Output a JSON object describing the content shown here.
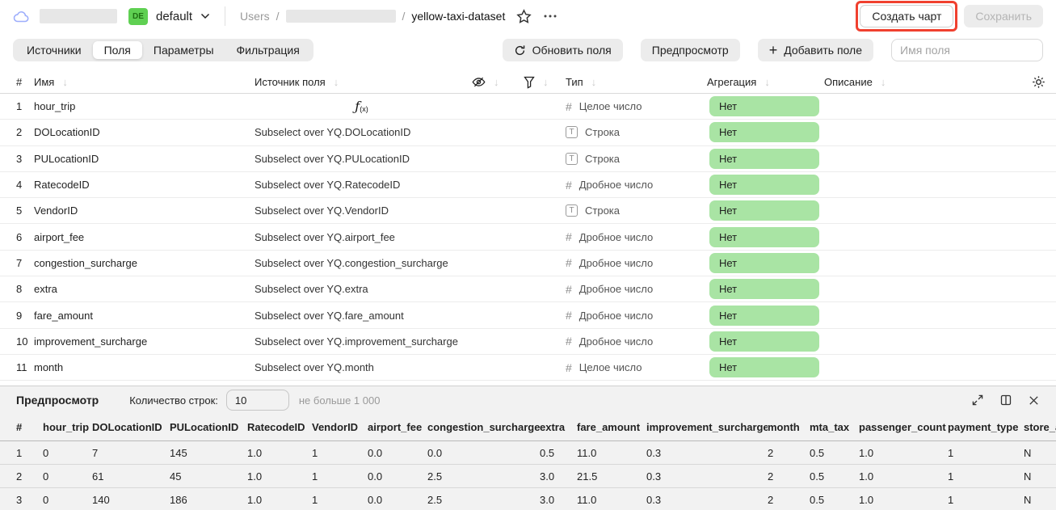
{
  "header": {
    "workspace_badge": "DE",
    "workspace_name": "default",
    "breadcrumb": {
      "section": "Users",
      "separator": "/",
      "dataset": "yellow-taxi-dataset"
    },
    "buttons": {
      "create_chart": "Создать чарт",
      "save": "Сохранить"
    }
  },
  "tabs": {
    "items": [
      {
        "label": "Источники",
        "active": false
      },
      {
        "label": "Поля",
        "active": true
      },
      {
        "label": "Параметры",
        "active": false
      },
      {
        "label": "Фильтрация",
        "active": false
      }
    ]
  },
  "toolbar": {
    "refresh_fields_label": "Обновить поля",
    "preview_label": "Предпросмотр",
    "add_field_plus": "+",
    "add_field_label": "Добавить поле",
    "field_name_placeholder": "Имя поля"
  },
  "icons": {
    "sort_arrow": "↓",
    "number_glyph": "#",
    "string_glyph": "T",
    "formula_f": "ƒ",
    "formula_sub": "(x)"
  },
  "fields_table": {
    "columns": {
      "index": "#",
      "name": "Имя",
      "source": "Источник поля",
      "type": "Тип",
      "aggregation": "Агрегация",
      "description": "Описание"
    },
    "rows": [
      {
        "n": "1",
        "name": "hour_trip",
        "source": "",
        "is_formula": true,
        "type_kind": "int",
        "type": "Целое число",
        "agg": "Нет",
        "desc": ""
      },
      {
        "n": "2",
        "name": "DOLocationID",
        "source": "Subselect over YQ.DOLocationID",
        "is_formula": false,
        "type_kind": "string",
        "type": "Строка",
        "agg": "Нет",
        "desc": ""
      },
      {
        "n": "3",
        "name": "PULocationID",
        "source": "Subselect over YQ.PULocationID",
        "is_formula": false,
        "type_kind": "string",
        "type": "Строка",
        "agg": "Нет",
        "desc": ""
      },
      {
        "n": "4",
        "name": "RatecodeID",
        "source": "Subselect over YQ.RatecodeID",
        "is_formula": false,
        "type_kind": "float",
        "type": "Дробное число",
        "agg": "Нет",
        "desc": ""
      },
      {
        "n": "5",
        "name": "VendorID",
        "source": "Subselect over YQ.VendorID",
        "is_formula": false,
        "type_kind": "string",
        "type": "Строка",
        "agg": "Нет",
        "desc": ""
      },
      {
        "n": "6",
        "name": "airport_fee",
        "source": "Subselect over YQ.airport_fee",
        "is_formula": false,
        "type_kind": "float",
        "type": "Дробное число",
        "agg": "Нет",
        "desc": ""
      },
      {
        "n": "7",
        "name": "congestion_surcharge",
        "source": "Subselect over YQ.congestion_surcharge",
        "is_formula": false,
        "type_kind": "float",
        "type": "Дробное число",
        "agg": "Нет",
        "desc": ""
      },
      {
        "n": "8",
        "name": "extra",
        "source": "Subselect over YQ.extra",
        "is_formula": false,
        "type_kind": "float",
        "type": "Дробное число",
        "agg": "Нет",
        "desc": ""
      },
      {
        "n": "9",
        "name": "fare_amount",
        "source": "Subselect over YQ.fare_amount",
        "is_formula": false,
        "type_kind": "float",
        "type": "Дробное число",
        "agg": "Нет",
        "desc": ""
      },
      {
        "n": "10",
        "name": "improvement_surcharge",
        "source": "Subselect over YQ.improvement_surcharge",
        "is_formula": false,
        "type_kind": "float",
        "type": "Дробное число",
        "agg": "Нет",
        "desc": ""
      },
      {
        "n": "11",
        "name": "month",
        "source": "Subselect over YQ.month",
        "is_formula": false,
        "type_kind": "int",
        "type": "Целое число",
        "agg": "Нет",
        "desc": ""
      }
    ]
  },
  "preview": {
    "title": "Предпросмотр",
    "rows_count_label": "Количество строк:",
    "rows_count_value": "10",
    "limit_hint": "не больше 1 000",
    "table": {
      "headers": [
        "#",
        "hour_trip",
        "DOLocationID",
        "PULocationID",
        "RatecodeID",
        "VendorID",
        "airport_fee",
        "congestion_surcharge",
        "extra",
        "fare_amount",
        "improvement_surcharge",
        "month",
        "mta_tax",
        "passenger_count",
        "payment_type",
        "store_and_fwd_flag"
      ],
      "rows": [
        [
          "1",
          "0",
          "7",
          "145",
          "1.0",
          "1",
          "0.0",
          "0.0",
          "0.5",
          "11.0",
          "0.3",
          "2",
          "0.5",
          "1.0",
          "1",
          "N"
        ],
        [
          "2",
          "0",
          "61",
          "45",
          "1.0",
          "1",
          "0.0",
          "2.5",
          "3.0",
          "21.5",
          "0.3",
          "2",
          "0.5",
          "1.0",
          "1",
          "N"
        ],
        [
          "3",
          "0",
          "140",
          "186",
          "1.0",
          "1",
          "0.0",
          "2.5",
          "3.0",
          "11.0",
          "0.3",
          "2",
          "0.5",
          "1.0",
          "1",
          "N"
        ]
      ]
    }
  },
  "colors": {
    "aggregation_pill_green": "#a9e4a4",
    "env_badge_green": "#5fd052",
    "annotation_red": "#f0402f",
    "cloud_blue": "#9daefc"
  }
}
